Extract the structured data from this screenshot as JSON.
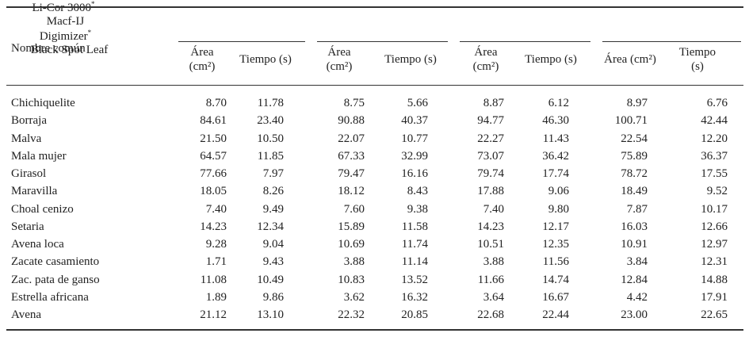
{
  "table": {
    "header": {
      "row_label": "Nombre común",
      "groups": [
        {
          "name": "Li-Cor 3000",
          "mark": "*",
          "columns": [
            "Área (cm²)",
            "Tiempo (s)"
          ]
        },
        {
          "name": "Macf-IJ",
          "columns": [
            "Área (cm²)",
            "Tiempo (s)"
          ]
        },
        {
          "name": "Digimizer",
          "mark": "*",
          "columns": [
            "Área (cm²)",
            "Tiempo (s)"
          ]
        },
        {
          "name": "Black Spot Leaf",
          "columns": [
            "Área (cm²)",
            "Tiempo (s)"
          ]
        }
      ]
    },
    "rows": [
      [
        "Chichiquelite",
        "8.70",
        "11.78",
        "8.75",
        "5.66",
        "8.87",
        "6.12",
        "8.97",
        "6.76"
      ],
      [
        "Borraja",
        "84.61",
        "23.40",
        "90.88",
        "40.37",
        "94.77",
        "46.30",
        "100.71",
        "42.44"
      ],
      [
        "Malva",
        "21.50",
        "10.50",
        "22.07",
        "10.77",
        "22.27",
        "11.43",
        "22.54",
        "12.20"
      ],
      [
        "Mala mujer",
        "64.57",
        "11.85",
        "67.33",
        "32.99",
        "73.07",
        "36.42",
        "75.89",
        "36.37"
      ],
      [
        "Girasol",
        "77.66",
        "7.97",
        "79.47",
        "16.16",
        "79.74",
        "17.74",
        "78.72",
        "17.55"
      ],
      [
        "Maravilla",
        "18.05",
        "8.26",
        "18.12",
        "8.43",
        "17.88",
        "9.06",
        "18.49",
        "9.52"
      ],
      [
        "Choal cenizo",
        "7.40",
        "9.49",
        "7.60",
        "9.38",
        "7.40",
        "9.80",
        "7.87",
        "10.17"
      ],
      [
        "Setaria",
        "14.23",
        "12.34",
        "15.89",
        "11.58",
        "14.23",
        "12.17",
        "16.03",
        "12.66"
      ],
      [
        "Avena loca",
        "9.28",
        "9.04",
        "10.69",
        "11.74",
        "10.51",
        "12.35",
        "10.91",
        "12.97"
      ],
      [
        "Zacate casamiento",
        "1.71",
        "9.43",
        "3.88",
        "11.14",
        "3.88",
        "11.56",
        "3.84",
        "12.31"
      ],
      [
        "Zac. pata de ganso",
        "11.08",
        "10.49",
        "10.83",
        "13.52",
        "11.66",
        "14.74",
        "12.84",
        "14.88"
      ],
      [
        "Estrella africana",
        "1.89",
        "9.86",
        "3.62",
        "16.32",
        "3.64",
        "16.67",
        "4.42",
        "17.91"
      ],
      [
        "Avena",
        "21.12",
        "13.10",
        "22.32",
        "20.85",
        "22.68",
        "22.44",
        "23.00",
        "22.65"
      ]
    ]
  }
}
